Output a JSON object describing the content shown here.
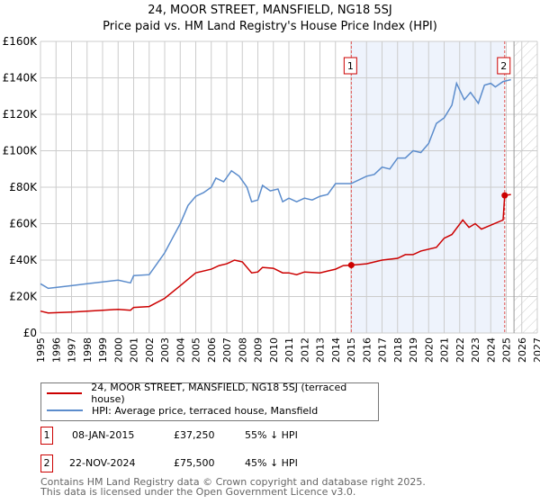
{
  "title": "24, MOOR STREET, MANSFIELD, NG18 5SJ",
  "subtitle": "Price paid vs. HM Land Registry's House Price Index (HPI)",
  "legend": {
    "property": "24, MOOR STREET, MANSFIELD, NG18 5SJ (terraced house)",
    "hpi": "HPI: Average price, terraced house, Mansfield"
  },
  "transactions": [
    {
      "num": "1",
      "date": "08-JAN-2015",
      "price": "£37,250",
      "delta": "55% ↓ HPI"
    },
    {
      "num": "2",
      "date": "22-NOV-2024",
      "price": "£75,500",
      "delta": "45% ↓ HPI"
    }
  ],
  "footer": {
    "line1": "Contains HM Land Registry data © Crown copyright and database right 2025.",
    "line2": "This data is licensed under the Open Government Licence v3.0."
  },
  "colors": {
    "property": "#cc0000",
    "hpi": "#5b8ccc",
    "shade": "#eef3fc",
    "grid": "#cccccc"
  },
  "chart_data": {
    "type": "line",
    "title": "24, MOOR STREET, MANSFIELD, NG18 5SJ",
    "subtitle": "Price paid vs. HM Land Registry's House Price Index (HPI)",
    "xlim": [
      1995,
      2027
    ],
    "ylim": [
      0,
      160000
    ],
    "yticks": [
      0,
      20000,
      40000,
      60000,
      80000,
      100000,
      120000,
      140000,
      160000
    ],
    "ytick_labels": [
      "£0",
      "£20K",
      "£40K",
      "£60K",
      "£80K",
      "£100K",
      "£120K",
      "£140K",
      "£160K"
    ],
    "xticks": [
      "1995",
      "1996",
      "1997",
      "1998",
      "1999",
      "2000",
      "2001",
      "2002",
      "2003",
      "2004",
      "2005",
      "2006",
      "2007",
      "2008",
      "2009",
      "2010",
      "2011",
      "2012",
      "2013",
      "2014",
      "2015",
      "2016",
      "2017",
      "2018",
      "2019",
      "2020",
      "2021",
      "2022",
      "2023",
      "2024",
      "2025",
      "2026",
      "2027"
    ],
    "grid": true,
    "shaded_period": [
      2015.02,
      2024.9
    ],
    "forecast_hatch_from": 2025.5,
    "markers": [
      {
        "label": "1",
        "x": 2015.02,
        "y": 37250
      },
      {
        "label": "2",
        "x": 2024.9,
        "y": 75500
      }
    ],
    "series": [
      {
        "name": "24, MOOR STREET, MANSFIELD, NG18 5SJ (terraced house)",
        "color": "#cc0000",
        "x": [
          1995,
          1995.5,
          1997,
          1998,
          1999,
          2000,
          2000.8,
          2001,
          2002,
          2003,
          2004,
          2005,
          2006,
          2006.5,
          2007,
          2007.5,
          2008,
          2008.6,
          2009,
          2009.3,
          2010,
          2010.6,
          2011,
          2011.5,
          2012,
          2013,
          2013.5,
          2014,
          2014.5,
          2015.02,
          2016,
          2017,
          2018,
          2018.5,
          2019,
          2019.5,
          2020.5,
          2021,
          2021.5,
          2022.2,
          2022.6,
          2023,
          2023.4,
          2024.8,
          2024.9,
          2025.3
        ],
        "y": [
          12000,
          11000,
          11500,
          12000,
          12500,
          13000,
          12500,
          14000,
          14500,
          19000,
          26000,
          33000,
          35000,
          37000,
          38000,
          40000,
          39000,
          33000,
          33500,
          36000,
          35500,
          33000,
          33000,
          32000,
          33500,
          33000,
          34000,
          35000,
          37000,
          37250,
          38000,
          40000,
          41000,
          43000,
          43000,
          45000,
          47000,
          52000,
          54000,
          62000,
          58000,
          60000,
          57000,
          62000,
          75500,
          76000
        ]
      },
      {
        "name": "HPI: Average price, terraced house, Mansfield",
        "color": "#5b8ccc",
        "x": [
          1995,
          1995.5,
          1996,
          1997,
          1998,
          1999,
          2000,
          2000.8,
          2001,
          2002,
          2002.5,
          2003,
          2003.5,
          2004,
          2004.5,
          2005,
          2005.5,
          2006,
          2006.3,
          2006.8,
          2007.3,
          2007.8,
          2008.3,
          2008.6,
          2009,
          2009.3,
          2009.8,
          2010.3,
          2010.6,
          2011,
          2011.5,
          2012,
          2012.5,
          2013,
          2013.5,
          2014,
          2015,
          2016,
          2016.5,
          2017,
          2017.5,
          2018,
          2018.5,
          2019,
          2019.5,
          2020,
          2020.5,
          2021,
          2021.5,
          2021.8,
          2022.3,
          2022.7,
          2023.2,
          2023.6,
          2024,
          2024.3,
          2024.8,
          2025.3
        ],
        "y": [
          27000,
          24500,
          25000,
          26000,
          27000,
          28000,
          29000,
          27500,
          31500,
          32000,
          38000,
          44000,
          52000,
          60000,
          70000,
          75000,
          77000,
          80000,
          85000,
          83000,
          89000,
          86000,
          80000,
          72000,
          73000,
          81000,
          78000,
          79000,
          72000,
          74000,
          72000,
          74000,
          73000,
          75000,
          76000,
          82000,
          82000,
          86000,
          87000,
          91000,
          90000,
          96000,
          96000,
          100000,
          99000,
          104000,
          115000,
          118000,
          125000,
          137000,
          128000,
          132000,
          126000,
          136000,
          137000,
          135000,
          138000,
          139000
        ]
      }
    ]
  }
}
